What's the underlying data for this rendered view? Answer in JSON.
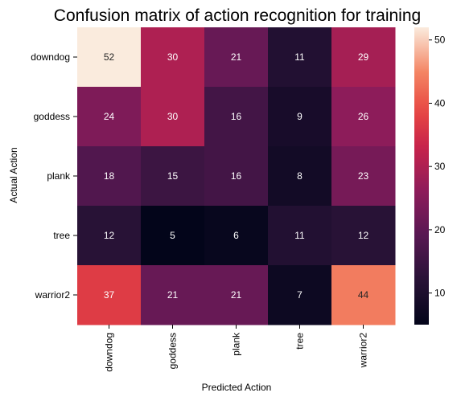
{
  "chart_data": {
    "type": "heatmap",
    "title": "Confusion matrix of action recognition for training",
    "xlabel": "Predicted Action",
    "ylabel": "Actual Action",
    "x_categories": [
      "downdog",
      "goddess",
      "plank",
      "tree",
      "warrior2"
    ],
    "y_categories": [
      "downdog",
      "goddess",
      "plank",
      "tree",
      "warrior2"
    ],
    "values": [
      [
        52,
        30,
        21,
        11,
        29
      ],
      [
        24,
        30,
        16,
        9,
        26
      ],
      [
        18,
        15,
        16,
        8,
        23
      ],
      [
        12,
        5,
        6,
        11,
        12
      ],
      [
        37,
        21,
        21,
        7,
        44
      ]
    ],
    "colormap": "rocket",
    "colorbar": {
      "range": [
        5,
        52
      ],
      "ticks": [
        10,
        20,
        30,
        40,
        50
      ]
    }
  }
}
